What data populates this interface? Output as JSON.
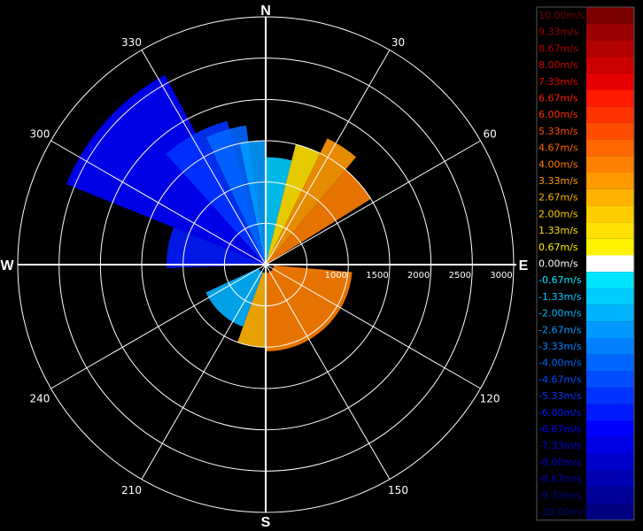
{
  "chart_data": {
    "type": "polar-radar-velocity-ppi",
    "compass": {
      "north": "N",
      "east": "E",
      "south": "S",
      "west": "W"
    },
    "azimuth_labels": [
      "30",
      "60",
      "120",
      "150",
      "210",
      "240",
      "300",
      "330"
    ],
    "azimuths_deg": [
      30,
      60,
      120,
      150,
      210,
      240,
      300,
      330
    ],
    "range_rings": [
      500,
      1000,
      1500,
      2000,
      2500,
      3000
    ],
    "range_labels": [
      "1000",
      "1500",
      "2000",
      "2500",
      "3000"
    ],
    "range_max": 3000,
    "grid": true,
    "colorbar": {
      "labels": [
        "10.00m/s",
        "9.33m/s",
        "8.67m/s",
        "8.00m/s",
        "7.33m/s",
        "6.67m/s",
        "6.00m/s",
        "5.33m/s",
        "4.67m/s",
        "4.00m/s",
        "3.33m/s",
        "2.67m/s",
        "2.00m/s",
        "1.33m/s",
        "0.67m/s",
        "0.00m/s",
        "-0.67m/s",
        "-1.33m/s",
        "-2.00m/s",
        "-2.67m/s",
        "-3.33m/s",
        "-4.00m/s",
        "-4.67m/s",
        "-5.33m/s",
        "-6.00m/s",
        "-6.67m/s",
        "-7.33m/s",
        "-8.00m/s",
        "-8.67m/s",
        "-9.33m/s",
        "-10.00m/s"
      ],
      "colors": [
        "#7a0000",
        "#990000",
        "#b30000",
        "#cc0000",
        "#e60000",
        "#ff1a00",
        "#ff3300",
        "#ff4d00",
        "#ff6600",
        "#ff8000",
        "#ff9900",
        "#ffb300",
        "#ffcc00",
        "#ffe000",
        "#fff200",
        "#ffffff",
        "#00e5ff",
        "#00ccff",
        "#00b3ff",
        "#0099ff",
        "#0080ff",
        "#0066ff",
        "#004dff",
        "#0033ff",
        "#0019ff",
        "#0000ff",
        "#0000e6",
        "#0000cc",
        "#0000b3",
        "#000099",
        "#000080"
      ]
    },
    "velocity_sectors": [
      {
        "az_from": 292,
        "az_to": 332,
        "range_from": 0,
        "range_to": 2600,
        "velocity": -6.67
      },
      {
        "az_from": 318,
        "az_to": 345,
        "range_from": 0,
        "range_to": 1800,
        "velocity": -5.33
      },
      {
        "az_from": 335,
        "az_to": 352,
        "range_from": 0,
        "range_to": 1700,
        "velocity": -4.0
      },
      {
        "az_from": 348,
        "az_to": 360,
        "range_from": 0,
        "range_to": 1500,
        "velocity": -2.67
      },
      {
        "az_from": 0,
        "az_to": 14,
        "range_from": 0,
        "range_to": 1300,
        "velocity": -1.33
      },
      {
        "az_from": 14,
        "az_to": 26,
        "range_from": 0,
        "range_to": 1500,
        "velocity": 1.33
      },
      {
        "az_from": 26,
        "az_to": 40,
        "range_from": 0,
        "range_to": 1700,
        "velocity": 3.33
      },
      {
        "az_from": 40,
        "az_to": 58,
        "range_from": 0,
        "range_to": 1500,
        "velocity": 4.0
      },
      {
        "az_from": 268,
        "az_to": 292,
        "range_from": 0,
        "range_to": 1200,
        "velocity": -6.0
      },
      {
        "az_from": 95,
        "az_to": 180,
        "range_from": 100,
        "range_to": 1050,
        "velocity": 4.0
      },
      {
        "az_from": 180,
        "az_to": 200,
        "range_from": 100,
        "range_to": 1000,
        "velocity": 2.67
      },
      {
        "az_from": 200,
        "az_to": 245,
        "range_from": 100,
        "range_to": 800,
        "velocity": -2.0
      }
    ]
  }
}
